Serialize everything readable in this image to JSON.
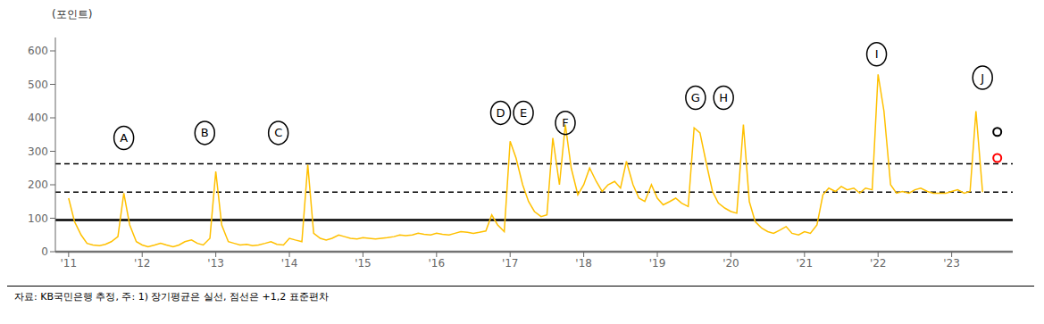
{
  "chart_data": {
    "type": "line",
    "ylabel": "(포인트)",
    "footnote": "자료: KB국민은행 추정, 주: 1) 장기평균은 실선, 점선은 +1,2 표준편차",
    "xlim": [
      2010.82,
      2023.83
    ],
    "ylim": [
      0,
      640
    ],
    "xticks": [
      {
        "value": 2011,
        "label": "'11"
      },
      {
        "value": 2012,
        "label": "'12"
      },
      {
        "value": 2013,
        "label": "'13"
      },
      {
        "value": 2014,
        "label": "'14"
      },
      {
        "value": 2015,
        "label": "'15"
      },
      {
        "value": 2016,
        "label": "'16"
      },
      {
        "value": 2017,
        "label": "'17"
      },
      {
        "value": 2018,
        "label": "'18"
      },
      {
        "value": 2019,
        "label": "'19"
      },
      {
        "value": 2020,
        "label": "'20"
      },
      {
        "value": 2021,
        "label": "'21"
      },
      {
        "value": 2022,
        "label": "'22"
      },
      {
        "value": 2023,
        "label": "'23"
      }
    ],
    "yticks": [
      0,
      100,
      200,
      300,
      400,
      500,
      600
    ],
    "grid": false,
    "series": [
      {
        "type": "line",
        "color": "#FFC000",
        "x": [
          2011.0,
          2011.08,
          2011.17,
          2011.25,
          2011.33,
          2011.42,
          2011.5,
          2011.58,
          2011.67,
          2011.75,
          2011.83,
          2011.92,
          2012.0,
          2012.08,
          2012.17,
          2012.25,
          2012.33,
          2012.42,
          2012.5,
          2012.58,
          2012.67,
          2012.75,
          2012.83,
          2012.92,
          2013.0,
          2013.08,
          2013.17,
          2013.25,
          2013.33,
          2013.42,
          2013.5,
          2013.58,
          2013.67,
          2013.75,
          2013.83,
          2013.92,
          2014.0,
          2014.08,
          2014.17,
          2014.25,
          2014.33,
          2014.42,
          2014.5,
          2014.58,
          2014.67,
          2014.75,
          2014.83,
          2014.92,
          2015.0,
          2015.08,
          2015.17,
          2015.25,
          2015.33,
          2015.42,
          2015.5,
          2015.58,
          2015.67,
          2015.75,
          2015.83,
          2015.92,
          2016.0,
          2016.08,
          2016.17,
          2016.25,
          2016.33,
          2016.42,
          2016.5,
          2016.58,
          2016.67,
          2016.75,
          2016.83,
          2016.92,
          2017.0,
          2017.08,
          2017.17,
          2017.25,
          2017.33,
          2017.42,
          2017.5,
          2017.58,
          2017.67,
          2017.75,
          2017.83,
          2017.92,
          2018.0,
          2018.08,
          2018.17,
          2018.25,
          2018.33,
          2018.42,
          2018.5,
          2018.58,
          2018.67,
          2018.75,
          2018.83,
          2018.92,
          2019.0,
          2019.08,
          2019.17,
          2019.25,
          2019.33,
          2019.42,
          2019.5,
          2019.58,
          2019.67,
          2019.75,
          2019.83,
          2019.92,
          2020.0,
          2020.08,
          2020.17,
          2020.25,
          2020.33,
          2020.42,
          2020.5,
          2020.58,
          2020.67,
          2020.75,
          2020.83,
          2020.92,
          2021.0,
          2021.08,
          2021.17,
          2021.25,
          2021.33,
          2021.42,
          2021.5,
          2021.58,
          2021.67,
          2021.75,
          2021.83,
          2021.92,
          2022.0,
          2022.08,
          2022.17,
          2022.25,
          2022.33,
          2022.42,
          2022.5,
          2022.58,
          2022.67,
          2022.75,
          2022.83,
          2022.92,
          2023.0,
          2023.08,
          2023.17,
          2023.25,
          2023.33,
          2023.42
        ],
        "values": [
          160,
          90,
          50,
          25,
          20,
          18,
          22,
          30,
          45,
          175,
          80,
          30,
          20,
          15,
          20,
          25,
          20,
          15,
          20,
          30,
          35,
          25,
          20,
          40,
          240,
          80,
          30,
          25,
          20,
          22,
          18,
          20,
          25,
          30,
          22,
          20,
          40,
          35,
          30,
          260,
          55,
          40,
          35,
          40,
          50,
          45,
          40,
          38,
          42,
          40,
          38,
          40,
          42,
          45,
          50,
          48,
          50,
          55,
          52,
          50,
          55,
          52,
          50,
          55,
          60,
          58,
          55,
          58,
          62,
          110,
          80,
          60,
          330,
          280,
          200,
          150,
          120,
          105,
          110,
          340,
          200,
          380,
          250,
          170,
          200,
          250,
          210,
          180,
          200,
          210,
          190,
          270,
          200,
          160,
          150,
          200,
          160,
          140,
          150,
          160,
          145,
          135,
          370,
          355,
          260,
          180,
          145,
          130,
          120,
          115,
          380,
          150,
          90,
          70,
          60,
          55,
          65,
          75,
          55,
          50,
          60,
          55,
          80,
          170,
          190,
          180,
          195,
          185,
          190,
          175,
          190,
          185,
          530,
          420,
          200,
          175,
          180,
          175,
          185,
          190,
          180,
          175,
          175,
          175,
          180,
          185,
          175,
          180,
          420,
          178
        ]
      },
      {
        "type": "scatter",
        "marker": "o",
        "color": "#000000",
        "x": [
          2023.62
        ],
        "values": [
          358
        ]
      },
      {
        "type": "scatter",
        "marker": "o",
        "color": "#FF0000",
        "x": [
          2023.62
        ],
        "values": [
          280
        ]
      }
    ],
    "reference_lines": [
      {
        "y": 95,
        "line_style": "solid",
        "color": "#000000"
      },
      {
        "y": 178,
        "line_style": "dashed",
        "color": "#000000"
      },
      {
        "y": 263,
        "line_style": "dashed",
        "color": "#000000"
      },
      {
        "y": 0,
        "line_style": "solid",
        "color": "#808080"
      }
    ],
    "annotations": [
      {
        "text": "A",
        "x": 2011.75,
        "y": 340
      },
      {
        "text": "B",
        "x": 2012.85,
        "y": 355
      },
      {
        "text": "C",
        "x": 2013.85,
        "y": 355
      },
      {
        "text": "D",
        "x": 2016.87,
        "y": 415
      },
      {
        "text": "E",
        "x": 2017.18,
        "y": 415
      },
      {
        "text": "F",
        "x": 2017.75,
        "y": 385
      },
      {
        "text": "G",
        "x": 2019.52,
        "y": 460
      },
      {
        "text": "H",
        "x": 2019.9,
        "y": 460
      },
      {
        "text": "I",
        "x": 2021.98,
        "y": 590
      },
      {
        "text": "J",
        "x": 2023.42,
        "y": 520
      }
    ]
  }
}
